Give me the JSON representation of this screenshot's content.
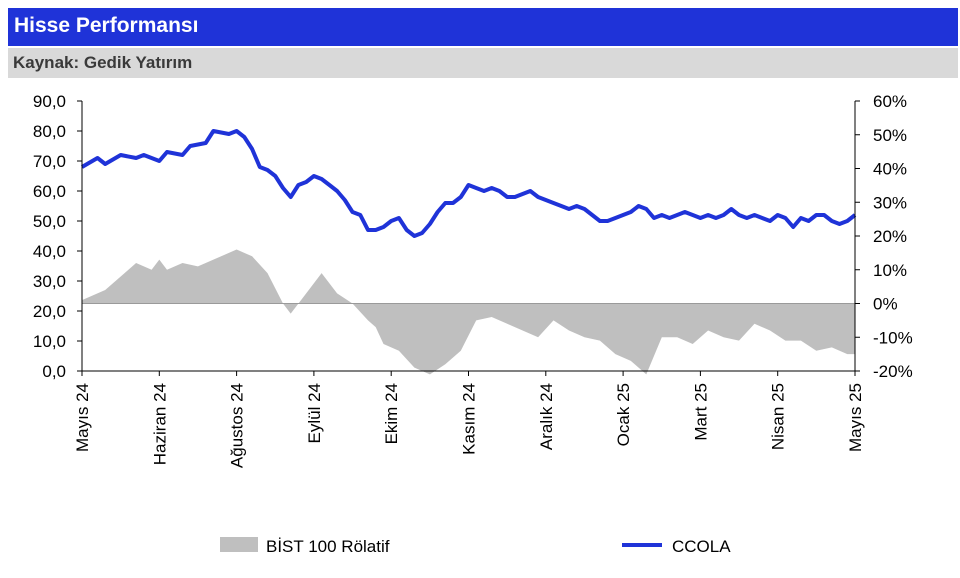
{
  "header": {
    "title": "Hisse Performansı",
    "source": "Kaynak: Gedik Yatırım"
  },
  "colors": {
    "title_bg": "#1f33d8",
    "source_bg": "#d9d9d9",
    "ccola_line": "#1f33d8",
    "relative_area": "#bfbfbf"
  },
  "chart_data": {
    "type": "line",
    "title": "",
    "x_tick_labels": [
      "Mayıs 24",
      "Haziran 24",
      "Ağustos 24",
      "Eylül 24",
      "Ekim 24",
      "Kasım 24",
      "Aralık 24",
      "Ocak 25",
      "Mart 25",
      "Nisan 25",
      "Mayıs 25"
    ],
    "y_left": {
      "ylim": [
        0,
        90
      ],
      "ticks": [
        "0,0",
        "10,0",
        "20,0",
        "30,0",
        "40,0",
        "50,0",
        "60,0",
        "70,0",
        "80,0",
        "90,0"
      ]
    },
    "y_right": {
      "ylim": [
        -20,
        60
      ],
      "ticks": [
        "-20%",
        "-10%",
        "0%",
        "10%",
        "20%",
        "30%",
        "40%",
        "50%",
        "60%"
      ]
    },
    "legend_position": "bottom",
    "grid": false,
    "series": [
      {
        "name": "BİST 100 Rölatif",
        "type": "area",
        "axis": "right",
        "unit": "%",
        "x": [
          0,
          0.03,
          0.05,
          0.07,
          0.09,
          0.1,
          0.11,
          0.13,
          0.15,
          0.17,
          0.19,
          0.2,
          0.22,
          0.24,
          0.26,
          0.27,
          0.29,
          0.31,
          0.33,
          0.35,
          0.37,
          0.38,
          0.39,
          0.41,
          0.43,
          0.45,
          0.47,
          0.49,
          0.51,
          0.53,
          0.55,
          0.57,
          0.59,
          0.61,
          0.63,
          0.65,
          0.67,
          0.69,
          0.71,
          0.73,
          0.75,
          0.77,
          0.79,
          0.81,
          0.83,
          0.85,
          0.87,
          0.89,
          0.91,
          0.93,
          0.95,
          0.97,
          0.99,
          1.0
        ],
        "y": [
          1,
          4,
          8,
          12,
          10,
          13,
          10,
          12,
          11,
          13,
          15,
          16,
          14,
          9,
          0,
          -3,
          3,
          9,
          3,
          0,
          -5,
          -7,
          -12,
          -14,
          -19,
          -21,
          -18,
          -14,
          -5,
          -4,
          -6,
          -8,
          -10,
          -5,
          -8,
          -10,
          -11,
          -15,
          -17,
          -21,
          -10,
          -10,
          -12,
          -8,
          -10,
          -11,
          -6,
          -8,
          -11,
          -11,
          -14,
          -13,
          -15,
          -15
        ]
      },
      {
        "name": "CCOLA",
        "type": "line",
        "axis": "left",
        "x": [
          0,
          0.02,
          0.03,
          0.05,
          0.07,
          0.08,
          0.1,
          0.11,
          0.13,
          0.14,
          0.16,
          0.17,
          0.19,
          0.2,
          0.21,
          0.22,
          0.23,
          0.24,
          0.25,
          0.26,
          0.27,
          0.28,
          0.29,
          0.3,
          0.31,
          0.32,
          0.33,
          0.34,
          0.35,
          0.36,
          0.37,
          0.38,
          0.39,
          0.4,
          0.41,
          0.42,
          0.43,
          0.44,
          0.45,
          0.46,
          0.47,
          0.48,
          0.49,
          0.5,
          0.51,
          0.52,
          0.53,
          0.54,
          0.55,
          0.56,
          0.57,
          0.58,
          0.59,
          0.6,
          0.61,
          0.62,
          0.63,
          0.64,
          0.65,
          0.66,
          0.67,
          0.68,
          0.69,
          0.7,
          0.71,
          0.72,
          0.73,
          0.74,
          0.75,
          0.76,
          0.77,
          0.78,
          0.79,
          0.8,
          0.81,
          0.82,
          0.83,
          0.84,
          0.85,
          0.86,
          0.87,
          0.88,
          0.89,
          0.9,
          0.91,
          0.92,
          0.93,
          0.94,
          0.95,
          0.96,
          0.97,
          0.98,
          0.99,
          1.0
        ],
        "y": [
          68,
          71,
          69,
          72,
          71,
          72,
          70,
          73,
          72,
          75,
          76,
          80,
          79,
          80,
          78,
          74,
          68,
          67,
          65,
          61,
          58,
          62,
          63,
          65,
          64,
          62,
          60,
          57,
          53,
          52,
          47,
          47,
          48,
          50,
          51,
          47,
          45,
          46,
          49,
          53,
          56,
          56,
          58,
          62,
          61,
          60,
          61,
          60,
          58,
          58,
          59,
          60,
          58,
          57,
          56,
          55,
          54,
          55,
          54,
          52,
          50,
          50,
          51,
          52,
          53,
          55,
          54,
          51,
          52,
          51,
          52,
          53,
          52,
          51,
          52,
          51,
          52,
          54,
          52,
          51,
          52,
          51,
          50,
          52,
          51,
          48,
          51,
          50,
          52,
          52,
          50,
          49,
          50,
          52
        ]
      }
    ]
  }
}
